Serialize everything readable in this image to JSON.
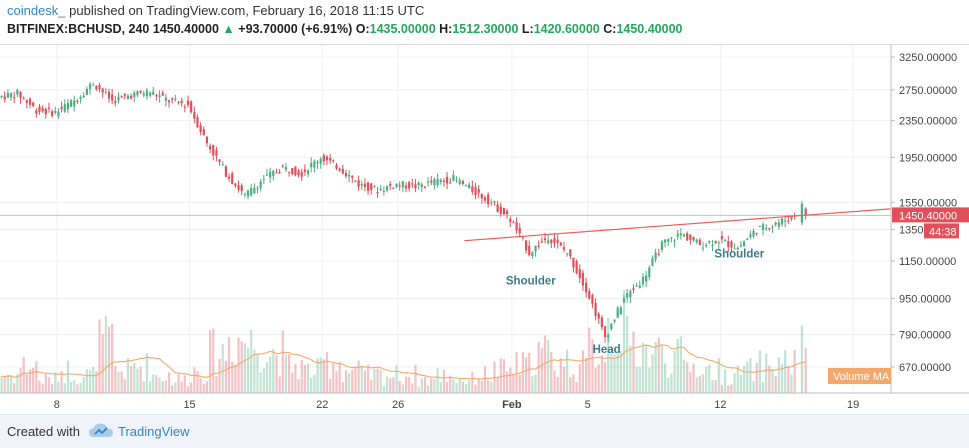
{
  "header": {
    "author": "coindesk_",
    "published": "published on TradingView.com, February 16, 2018 11:15 UTC",
    "symbol": "BITFINEX:BCHUSD, 240",
    "last": "1450.40000",
    "change": "+93.70000 (+6.91%)",
    "o_label": "O:",
    "o_value": "1435.00000",
    "h_label": "H:",
    "h_value": "1512.30000",
    "l_label": "L:",
    "l_value": "1420.60000",
    "c_label": "C:",
    "c_value": "1450.40000"
  },
  "footer": {
    "created": "Created with",
    "brand": "TradingView"
  },
  "colors": {
    "up": "#4caf82",
    "down": "#e0505a",
    "trendline": "#f05a5a",
    "price_line": "#5cb8a0",
    "volume_ma": "#f3a86b",
    "pattern_label": "#3d7a8a"
  },
  "chart_data": {
    "type": "candlestick",
    "symbol": "BITFINEX:BCHUSD",
    "interval": "240",
    "y_ticks": [
      "3250.00000",
      "2750.00000",
      "2350.00000",
      "1950.00000",
      "1550.00000",
      "1350.00000",
      "1150.00000",
      "950.00000",
      "790.00000",
      "670.00000"
    ],
    "y_tick_values": [
      3250,
      2750,
      2350,
      1950,
      1550,
      1350,
      1150,
      950,
      790,
      670
    ],
    "y_scale": "log",
    "y_range": [
      600,
      3500
    ],
    "x_ticks": [
      "8",
      "15",
      "22",
      "26",
      "Feb",
      "5",
      "12",
      "19"
    ],
    "x_tick_dates": [
      "2018-01-08",
      "2018-01-15",
      "2018-01-22",
      "2018-01-26",
      "2018-02-01",
      "2018-02-05",
      "2018-02-12",
      "2018-02-19"
    ],
    "x_range": [
      "2018-01-05",
      "2018-02-21"
    ],
    "price_label": "1450.40000",
    "countdown_label": "44:38",
    "last_price": 1450.4,
    "volume_label": "Volume MA",
    "annotations": [
      {
        "text": "Shoulder",
        "date": "2018-02-02",
        "price": 1020
      },
      {
        "text": "Head",
        "date": "2018-02-06",
        "price": 720
      },
      {
        "text": "Shoulder",
        "date": "2018-02-13",
        "price": 1170
      }
    ],
    "trendline": {
      "start": {
        "date": "2018-01-29T12:00",
        "price": 1275
      },
      "end": {
        "date": "2018-02-21",
        "price": 1500
      }
    },
    "price_path": [
      [
        "2018-01-05",
        2650
      ],
      [
        "2018-01-06",
        2700
      ],
      [
        "2018-01-07",
        2480
      ],
      [
        "2018-01-08",
        2450
      ],
      [
        "2018-01-09",
        2600
      ],
      [
        "2018-01-10",
        2850
      ],
      [
        "2018-01-11",
        2600
      ],
      [
        "2018-01-12",
        2680
      ],
      [
        "2018-01-13",
        2720
      ],
      [
        "2018-01-14",
        2600
      ],
      [
        "2018-01-15",
        2550
      ],
      [
        "2018-01-16",
        2100
      ],
      [
        "2018-01-17",
        1800
      ],
      [
        "2018-01-18",
        1600
      ],
      [
        "2018-01-19",
        1750
      ],
      [
        "2018-01-20",
        1850
      ],
      [
        "2018-01-21",
        1800
      ],
      [
        "2018-01-22",
        1950
      ],
      [
        "2018-01-23",
        1850
      ],
      [
        "2018-01-24",
        1700
      ],
      [
        "2018-01-25",
        1650
      ],
      [
        "2018-01-26",
        1700
      ],
      [
        "2018-01-27",
        1680
      ],
      [
        "2018-01-28",
        1720
      ],
      [
        "2018-01-29",
        1750
      ],
      [
        "2018-01-30",
        1650
      ],
      [
        "2018-01-31",
        1550
      ],
      [
        "2018-02-01",
        1420
      ],
      [
        "2018-02-02",
        1200
      ],
      [
        "2018-02-03",
        1300
      ],
      [
        "2018-02-04",
        1200
      ],
      [
        "2018-02-05",
        1000
      ],
      [
        "2018-02-06",
        780
      ],
      [
        "2018-02-07",
        950
      ],
      [
        "2018-02-08",
        1050
      ],
      [
        "2018-02-09",
        1250
      ],
      [
        "2018-02-10",
        1320
      ],
      [
        "2018-02-11",
        1250
      ],
      [
        "2018-02-12",
        1280
      ],
      [
        "2018-02-13",
        1230
      ],
      [
        "2018-02-14",
        1350
      ],
      [
        "2018-02-15",
        1390
      ],
      [
        "2018-02-16",
        1450
      ]
    ],
    "volume_relative": [
      0.2,
      0.3,
      0.15,
      0.25,
      0.2,
      0.55,
      0.25,
      0.3,
      0.2,
      0.15,
      0.25,
      0.45,
      0.6,
      0.55,
      0.45,
      0.3,
      0.25,
      0.35,
      0.25,
      0.2,
      0.2,
      0.2,
      0.15,
      0.2,
      0.15,
      0.2,
      0.25,
      0.3,
      0.45,
      0.35,
      0.3,
      0.5,
      0.75,
      0.55,
      0.45,
      0.4,
      0.3,
      0.25,
      0.2,
      0.25,
      0.3,
      0.35,
      0.5
    ]
  }
}
